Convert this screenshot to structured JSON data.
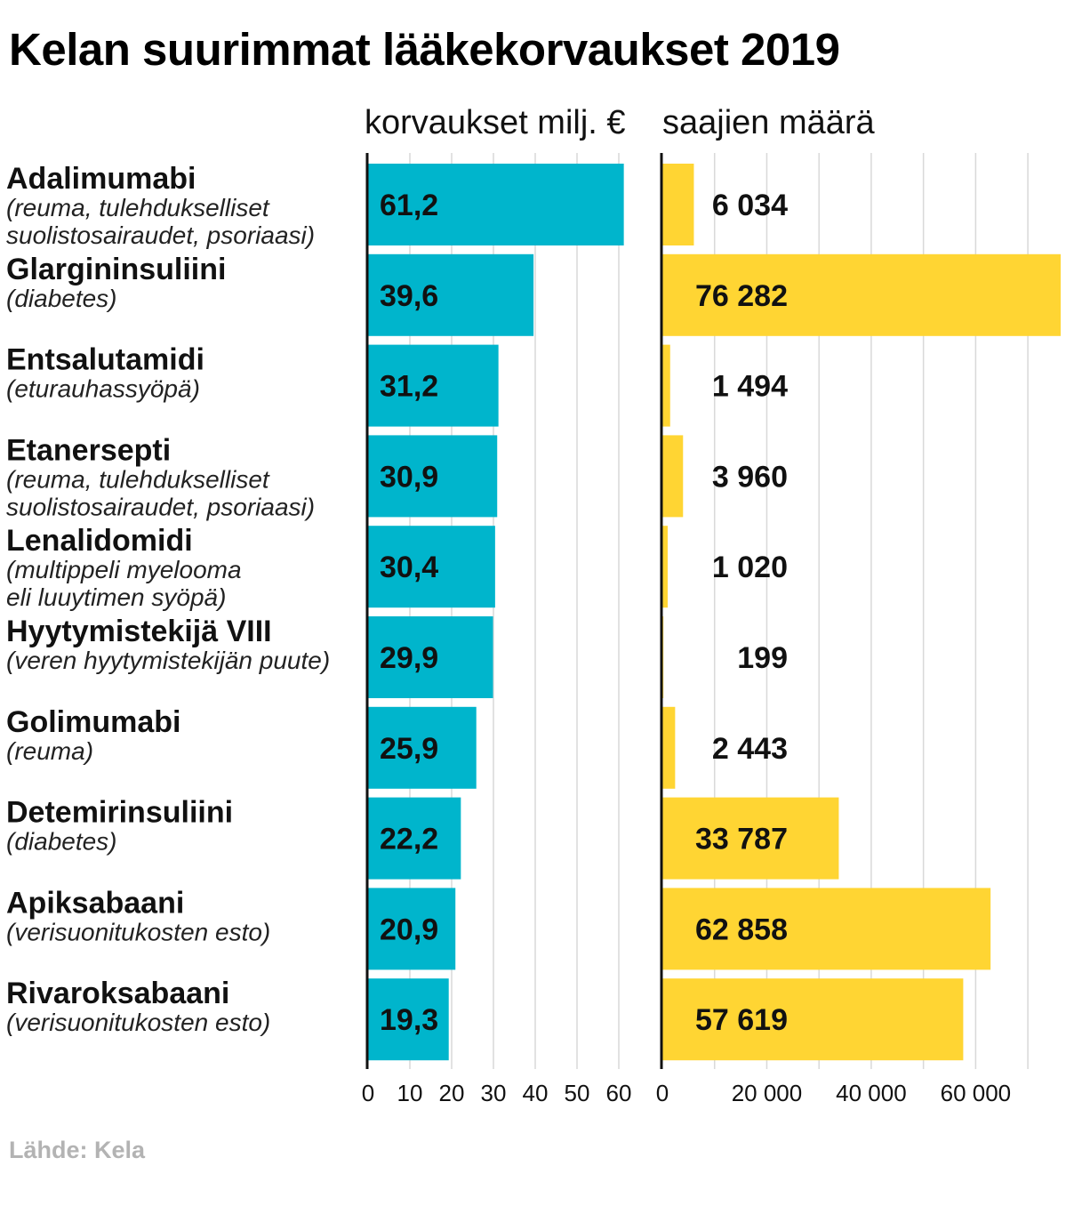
{
  "title": "Kelan suurimmat lääkekorvaukset 2019",
  "source": "Lähde: Kela",
  "chart_data": [
    {
      "type": "bar",
      "orientation": "horizontal",
      "title": "korvaukset milj. €",
      "categories": [
        {
          "name": "Adalimumabi",
          "sub": [
            "(reuma, tulehdukselliset",
            "suolistosairaudet, psoriaasi)"
          ]
        },
        {
          "name": "Glargininsuliini",
          "sub": [
            "(diabetes)"
          ]
        },
        {
          "name": "Entsalutamidi",
          "sub": [
            "(eturauhassyöpä)"
          ]
        },
        {
          "name": "Etanersepti",
          "sub": [
            "(reuma, tulehdukselliset",
            "suolistosairaudet, psoriaasi)"
          ]
        },
        {
          "name": "Lenalidomidi",
          "sub": [
            "(multippeli myelooma",
            "eli luuytimen syöpä)"
          ]
        },
        {
          "name": "Hyytymistekijä VIII",
          "sub": [
            "(veren hyytymistekijän puute)"
          ]
        },
        {
          "name": "Golimumabi",
          "sub": [
            "(reuma)"
          ]
        },
        {
          "name": "Detemirinsuliini",
          "sub": [
            "(diabetes)"
          ]
        },
        {
          "name": "Apiksabaani",
          "sub": [
            "(verisuonitukosten esto)"
          ]
        },
        {
          "name": "Rivaroksabaani",
          "sub": [
            "(verisuonitukosten esto)"
          ]
        }
      ],
      "values": [
        61.2,
        39.6,
        31.2,
        30.9,
        30.4,
        29.9,
        25.9,
        22.2,
        20.9,
        19.3
      ],
      "value_labels": [
        "61,2",
        "39,6",
        "31,2",
        "30,9",
        "30,4",
        "29,9",
        "25,9",
        "22,2",
        "20,9",
        "19,3"
      ],
      "xlim": [
        0,
        60
      ],
      "ticks": [
        0,
        10,
        20,
        30,
        40,
        50,
        60
      ],
      "tick_labels": [
        "0",
        "10",
        "20",
        "30",
        "40",
        "50",
        "60"
      ],
      "color": "#00b5cc",
      "grid": true
    },
    {
      "type": "bar",
      "orientation": "horizontal",
      "title": "saajien määrä",
      "values": [
        6034,
        76282,
        1494,
        3960,
        1020,
        199,
        2443,
        33787,
        62858,
        57619
      ],
      "value_labels": [
        "6 034",
        "76 282",
        "1 494",
        "3 960",
        "1 020",
        "199",
        "2 443",
        "33 787",
        "62 858",
        "57 619"
      ],
      "xlim": [
        0,
        76282
      ],
      "ticks": [
        0,
        20000,
        40000,
        60000
      ],
      "tick_labels": [
        "0",
        "20 000",
        "40 000",
        "60 000"
      ],
      "color": "#ffd533",
      "grid": true
    }
  ]
}
